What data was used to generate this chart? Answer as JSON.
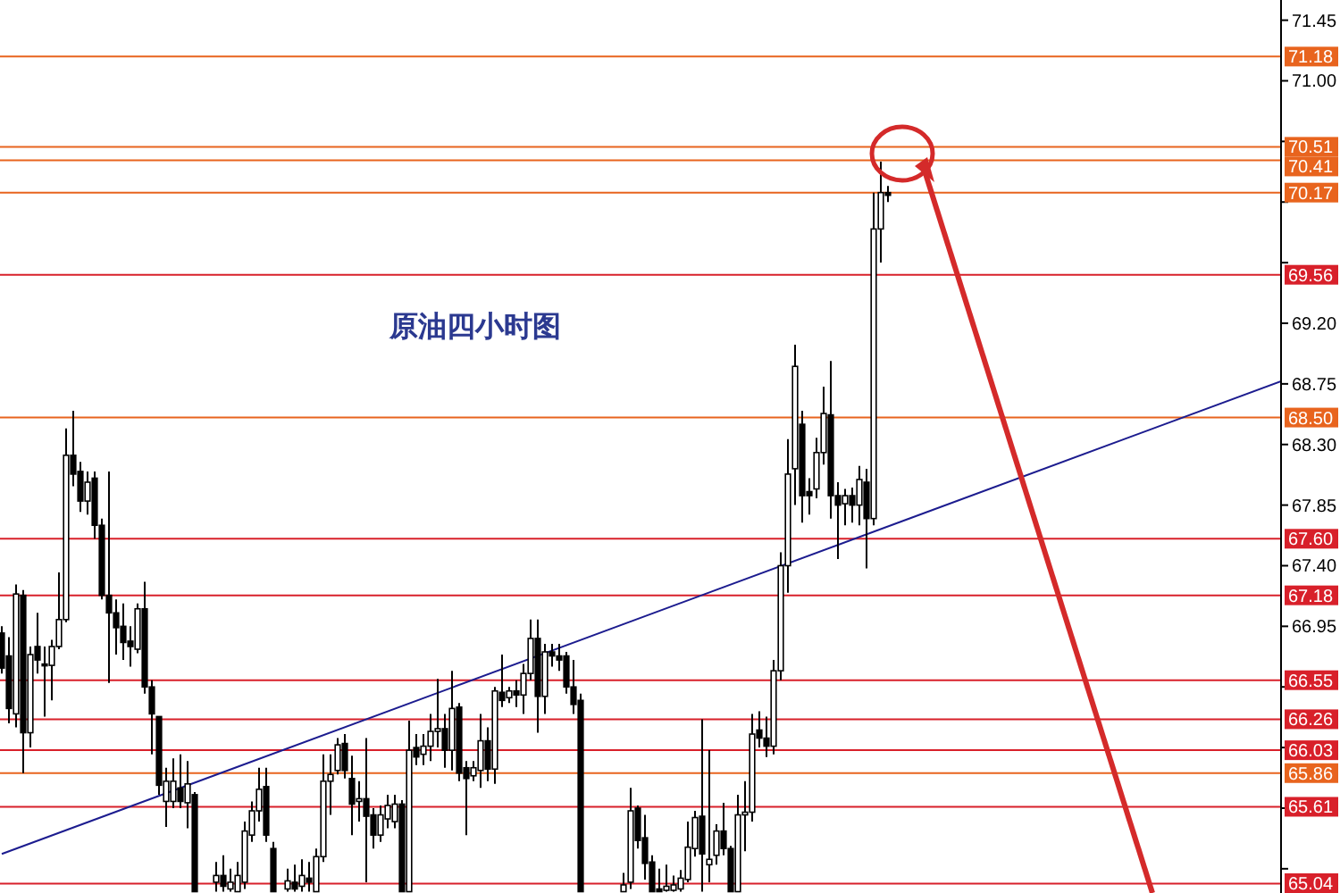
{
  "chart_data": {
    "type": "candlestick",
    "title": "原油四小时图",
    "color": "#000000",
    "categories": [
      null,
      null,
      null,
      null,
      null,
      null,
      null,
      null,
      null,
      null,
      null,
      null,
      null,
      null,
      null,
      null,
      null,
      null,
      null,
      null,
      null,
      null,
      null,
      null,
      null,
      null,
      null,
      null,
      null,
      null,
      null,
      null,
      null,
      null,
      null,
      null,
      null,
      null,
      null,
      null,
      null,
      null,
      null,
      null,
      null,
      null,
      null,
      null,
      null,
      null,
      null,
      null,
      null,
      null,
      null,
      null,
      null,
      null,
      null,
      null,
      null,
      null,
      null,
      null,
      null,
      null,
      null,
      null,
      null,
      null,
      null,
      null,
      null,
      null,
      null,
      null,
      null,
      null,
      null,
      null,
      null,
      null,
      null,
      null,
      null,
      null,
      null,
      null,
      null,
      null,
      null,
      null,
      null,
      null,
      null,
      null,
      null,
      null,
      null,
      null,
      null,
      null,
      null,
      null,
      null,
      null,
      null,
      null,
      null,
      null,
      null,
      null,
      null,
      null,
      null,
      null,
      null,
      null,
      null,
      null,
      null,
      null,
      null,
      null,
      null,
      null,
      null,
      null,
      null,
      null,
      null,
      null,
      null,
      null,
      null,
      null,
      null,
      null,
      null,
      null,
      null,
      null,
      null,
      null,
      null,
      null,
      null,
      null,
      null,
      null,
      null,
      null,
      null,
      null,
      null,
      null,
      null,
      null,
      null,
      null,
      null,
      null,
      null,
      null,
      null,
      null,
      null,
      null,
      null,
      null,
      null,
      null,
      null,
      null,
      null,
      null,
      null,
      null,
      null,
      null
    ],
    "ohlc": [
      [
        66.9,
        66.95,
        66.6,
        66.64
      ],
      [
        66.73,
        66.87,
        66.23,
        66.34
      ],
      [
        66.3,
        67.26,
        66.2,
        67.19
      ],
      [
        67.18,
        67.22,
        65.86,
        66.16
      ],
      [
        66.16,
        66.8,
        66.05,
        66.74
      ],
      [
        66.8,
        67.05,
        66.6,
        66.7
      ],
      [
        66.67,
        66.8,
        66.28,
        66.66
      ],
      [
        66.66,
        66.85,
        66.4,
        66.8
      ],
      [
        66.8,
        67.35,
        66.78,
        67.0
      ],
      [
        67.0,
        68.42,
        66.98,
        68.22
      ],
      [
        68.22,
        68.55,
        67.99,
        68.08
      ],
      [
        68.1,
        68.17,
        67.8,
        67.88
      ],
      [
        67.88,
        68.1,
        67.78,
        68.02
      ],
      [
        68.05,
        68.1,
        67.6,
        67.7
      ],
      [
        67.7,
        67.75,
        67.15,
        67.18
      ],
      [
        67.18,
        68.1,
        66.53,
        67.05
      ],
      [
        67.05,
        67.15,
        66.74,
        66.94
      ],
      [
        66.95,
        67.12,
        66.7,
        66.83
      ],
      [
        66.84,
        66.95,
        66.65,
        66.8
      ],
      [
        66.78,
        67.12,
        66.75,
        67.08
      ],
      [
        67.08,
        67.28,
        66.45,
        66.5
      ],
      [
        66.5,
        66.55,
        66.0,
        66.3
      ],
      [
        66.28,
        66.28,
        65.7,
        65.77
      ],
      [
        65.65,
        65.9,
        65.46,
        65.8
      ],
      [
        65.65,
        65.97,
        65.6,
        65.8
      ],
      [
        65.75,
        66.0,
        65.6,
        65.65
      ],
      [
        65.64,
        65.95,
        65.45,
        65.78
      ],
      [
        65.7,
        65.72,
        64.98,
        64.98
      ],
      null,
      null,
      [
        65.05,
        65.2,
        64.98,
        65.1
      ],
      [
        65.1,
        65.25,
        64.98,
        65.02
      ],
      [
        65.0,
        65.15,
        64.98,
        65.05
      ],
      [
        64.98,
        65.2,
        64.98,
        65.1
      ],
      [
        65.05,
        65.5,
        65.0,
        65.43
      ],
      [
        65.4,
        65.65,
        65.35,
        65.58
      ],
      [
        65.58,
        65.9,
        65.5,
        65.74
      ],
      [
        65.76,
        65.9,
        65.35,
        65.4
      ],
      [
        65.3,
        65.35,
        64.98,
        64.98
      ],
      null,
      [
        65.0,
        65.15,
        64.98,
        65.06
      ],
      [
        65.05,
        65.18,
        64.98,
        65.0
      ],
      [
        65.02,
        65.22,
        64.98,
        65.1
      ],
      [
        65.08,
        65.2,
        64.98,
        65.05
      ],
      [
        64.98,
        65.3,
        64.98,
        65.24
      ],
      [
        65.24,
        66.0,
        65.2,
        65.8
      ],
      [
        65.8,
        66.0,
        65.55,
        65.85
      ],
      [
        65.88,
        66.12,
        65.85,
        66.07
      ],
      [
        66.08,
        66.15,
        65.82,
        65.88
      ],
      [
        65.82,
        65.99,
        65.4,
        65.63
      ],
      [
        65.65,
        65.8,
        65.5,
        65.67
      ],
      [
        65.67,
        66.12,
        65.05,
        65.54
      ],
      [
        65.55,
        65.6,
        65.3,
        65.4
      ],
      [
        65.4,
        65.62,
        65.35,
        65.55
      ],
      [
        65.52,
        65.7,
        65.45,
        65.62
      ],
      [
        65.5,
        65.7,
        65.45,
        65.63
      ],
      [
        65.63,
        65.66,
        64.98,
        64.98
      ],
      [
        64.98,
        66.25,
        64.98,
        66.03
      ],
      [
        66.05,
        66.15,
        65.92,
        65.98
      ],
      [
        66.0,
        66.15,
        65.92,
        66.06
      ],
      [
        66.06,
        66.3,
        65.95,
        66.17
      ],
      [
        66.17,
        66.56,
        66.05,
        66.19
      ],
      [
        66.19,
        66.3,
        65.9,
        66.03
      ],
      [
        66.03,
        66.62,
        65.88,
        66.34
      ],
      [
        66.35,
        66.38,
        65.8,
        65.86
      ],
      [
        65.9,
        65.95,
        65.4,
        65.82
      ],
      [
        65.84,
        65.95,
        65.8,
        65.9
      ],
      [
        65.88,
        66.3,
        65.75,
        66.1
      ],
      [
        66.1,
        66.2,
        65.8,
        65.89
      ],
      [
        65.89,
        66.5,
        65.78,
        66.47
      ],
      [
        66.46,
        66.74,
        66.35,
        66.4
      ],
      [
        66.42,
        66.5,
        66.38,
        66.47
      ],
      [
        66.47,
        66.55,
        66.35,
        66.44
      ],
      [
        66.44,
        66.67,
        66.3,
        66.6
      ],
      [
        66.6,
        67.0,
        66.55,
        66.86
      ],
      [
        66.86,
        67.0,
        66.16,
        66.43
      ],
      [
        66.43,
        66.82,
        66.3,
        66.76
      ],
      [
        66.76,
        66.82,
        66.65,
        66.73
      ],
      [
        66.73,
        66.82,
        66.62,
        66.7
      ],
      [
        66.73,
        66.76,
        66.45,
        66.5
      ],
      [
        66.5,
        66.7,
        66.3,
        66.37
      ],
      [
        66.4,
        66.45,
        64.98,
        64.98
      ],
      null,
      null,
      null,
      null,
      null,
      [
        64.98,
        65.12,
        64.98,
        65.03
      ],
      [
        65.05,
        65.75,
        65.0,
        65.58
      ],
      [
        65.6,
        65.62,
        65.3,
        65.36
      ],
      [
        65.38,
        65.55,
        65.07,
        65.19
      ],
      [
        65.2,
        65.25,
        64.98,
        64.98
      ],
      [
        65.0,
        65.15,
        64.98,
        64.98
      ],
      [
        64.99,
        65.18,
        64.98,
        65.02
      ],
      [
        64.99,
        65.1,
        64.98,
        65.03
      ],
      [
        65.0,
        65.14,
        64.98,
        65.08
      ],
      [
        65.07,
        65.5,
        65.05,
        65.31
      ],
      [
        65.3,
        65.58,
        65.24,
        65.53
      ],
      [
        65.54,
        66.26,
        64.98,
        65.26
      ],
      [
        65.18,
        66.03,
        65.05,
        65.22
      ],
      [
        65.25,
        65.48,
        65.18,
        65.43
      ],
      [
        65.43,
        65.64,
        65.25,
        65.3
      ],
      [
        65.3,
        65.32,
        64.98,
        64.98
      ],
      [
        64.98,
        65.7,
        64.98,
        65.55
      ],
      [
        65.55,
        65.8,
        65.28,
        65.57
      ],
      [
        65.57,
        66.3,
        65.5,
        66.15
      ],
      [
        66.18,
        66.32,
        66.05,
        66.12
      ],
      [
        66.12,
        66.28,
        65.98,
        66.06
      ],
      [
        66.06,
        66.7,
        66.0,
        66.62
      ],
      [
        66.62,
        67.5,
        66.55,
        67.4
      ],
      [
        67.4,
        68.34,
        67.2,
        68.08
      ],
      [
        68.12,
        69.04,
        67.85,
        68.88
      ],
      [
        68.45,
        68.55,
        67.72,
        67.92
      ],
      [
        67.95,
        68.05,
        67.78,
        67.92
      ],
      [
        67.97,
        68.35,
        67.9,
        68.24
      ],
      [
        68.24,
        68.73,
        68.15,
        68.53
      ],
      [
        68.52,
        68.92,
        67.75,
        67.92
      ],
      [
        67.92,
        68.02,
        67.45,
        67.85
      ],
      [
        67.86,
        67.97,
        67.7,
        67.92
      ],
      [
        67.92,
        67.98,
        67.72,
        67.85
      ],
      [
        67.85,
        68.14,
        67.7,
        68.04
      ],
      [
        68.02,
        68.12,
        67.38,
        67.75
      ],
      [
        67.75,
        70.17,
        67.7,
        69.9
      ],
      [
        69.9,
        70.4,
        69.65,
        70.17
      ],
      [
        70.17,
        70.22,
        70.1,
        70.15
      ],
      null,
      null,
      null,
      null,
      null,
      null,
      null,
      null,
      null,
      null,
      null,
      null,
      null,
      null,
      null,
      null,
      null,
      null,
      null,
      null,
      null,
      null,
      null,
      null,
      null,
      null,
      null,
      null,
      null,
      null,
      null,
      null,
      null,
      null,
      null,
      null,
      null,
      null,
      null,
      null,
      null,
      null,
      null,
      null,
      null,
      null,
      null,
      null,
      null,
      null,
      null,
      null,
      null,
      null,
      null
    ],
    "series": [
      {
        "type": "line",
        "color": "#1c1c8f",
        "values": [
          65.26,
          null,
          null,
          null,
          null,
          null,
          null,
          null,
          null,
          null,
          null,
          null,
          null,
          null,
          null,
          null,
          null,
          null,
          null,
          null,
          null,
          null,
          null,
          null,
          null,
          null,
          null,
          null,
          null,
          null,
          null,
          null,
          null,
          null,
          null,
          null,
          null,
          null,
          null,
          null,
          null,
          null,
          null,
          null,
          null,
          null,
          null,
          null,
          null,
          null,
          null,
          null,
          null,
          null,
          null,
          null,
          null,
          null,
          null,
          null,
          null,
          null,
          null,
          null,
          null,
          null,
          null,
          null,
          null,
          null,
          null,
          null,
          null,
          null,
          null,
          null,
          null,
          null,
          null,
          null,
          null,
          null,
          null,
          null,
          null,
          null,
          null,
          null,
          null,
          null,
          null,
          null,
          null,
          null,
          null,
          null,
          null,
          null,
          null,
          null,
          null,
          null,
          null,
          null,
          null,
          null,
          null,
          null,
          null,
          null,
          null,
          null,
          null,
          null,
          null,
          null,
          null,
          null,
          null,
          null,
          null,
          null,
          null,
          null,
          null,
          null,
          null,
          null,
          null,
          null,
          null,
          null,
          null,
          null,
          null,
          null,
          null,
          null,
          null,
          null,
          null,
          null,
          null,
          null,
          null,
          null,
          null,
          null,
          null,
          null,
          null,
          null,
          null,
          null,
          null,
          null,
          null,
          null,
          null,
          null,
          null,
          null,
          null,
          null,
          null,
          null,
          null,
          null,
          null,
          null,
          null,
          null,
          null,
          null,
          null,
          null,
          null,
          null,
          null,
          68.77
        ]
      }
    ],
    "ylim": [
      64.97,
      71.6
    ],
    "yticks": [
      {
        "value": 71.45,
        "label": "71.45"
      },
      {
        "value": 71.0,
        "label": "71.00"
      },
      {
        "value": 70.55,
        "label": null
      },
      {
        "value": 70.1,
        "label": null
      },
      {
        "value": 69.65,
        "label": null
      },
      {
        "value": 69.2,
        "label": "69.20"
      },
      {
        "value": 68.75,
        "label": "68.75"
      },
      {
        "value": 68.3,
        "label": "68.30"
      },
      {
        "value": 67.85,
        "label": "67.85"
      },
      {
        "value": 67.4,
        "label": "67.40"
      },
      {
        "value": 66.95,
        "label": "66.95"
      },
      {
        "value": 66.5,
        "label": null
      },
      {
        "value": 66.05,
        "label": null
      },
      {
        "value": 65.6,
        "label": null
      },
      {
        "value": 65.15,
        "label": null
      }
    ],
    "tick_labels": "y",
    "ref_lines": [
      {
        "axis": "y",
        "value": 71.18,
        "label": "71.18",
        "color": "#e8641e"
      },
      {
        "axis": "y",
        "value": 70.51,
        "label": "70.51",
        "color": "#e8641e"
      },
      {
        "axis": "y",
        "value": 70.41,
        "label": "70.41",
        "color": "#e8641e"
      },
      {
        "axis": "y",
        "value": 70.17,
        "label": "70.17",
        "color": "#e8641e"
      },
      {
        "axis": "y",
        "value": 69.56,
        "label": "69.56",
        "color": "#d8202a"
      },
      {
        "axis": "y",
        "value": 68.5,
        "label": "68.50",
        "color": "#e8641e"
      },
      {
        "axis": "y",
        "value": 67.6,
        "label": "67.60",
        "color": "#d8202a"
      },
      {
        "axis": "y",
        "value": 67.18,
        "label": "67.18",
        "color": "#d8202a"
      },
      {
        "axis": "y",
        "value": 66.55,
        "label": "66.55",
        "color": "#d8202a"
      },
      {
        "axis": "y",
        "value": 66.26,
        "label": "66.26",
        "color": "#d8202a"
      },
      {
        "axis": "y",
        "value": 66.03,
        "label": "66.03",
        "color": "#d8202a"
      },
      {
        "axis": "y",
        "value": 65.86,
        "label": "65.86",
        "color": "#e8641e"
      },
      {
        "axis": "y",
        "value": 65.61,
        "label": "65.61",
        "color": "#d8202a"
      },
      {
        "axis": "y",
        "value": 65.04,
        "label": "65.04",
        "color": "#d8202a"
      }
    ]
  }
}
